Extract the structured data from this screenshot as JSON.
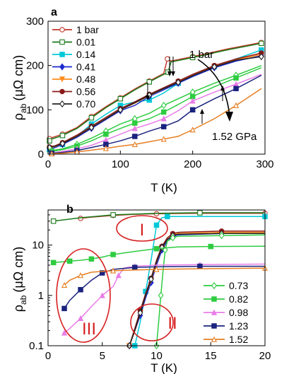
{
  "figure": {
    "panels": [
      "a",
      "b"
    ],
    "shared_xlabel": "T (K)",
    "ylabel_main": "ρ",
    "ylabel_sub": "ab",
    "ylabel_unit": "(μΩ cm)"
  },
  "chart_data": [
    {
      "panel": "a",
      "type": "line",
      "xlabel": "T (K)",
      "ylabel": "ρab (μΩ cm)",
      "xlim": [
        0,
        300
      ],
      "ylim": [
        0,
        300
      ],
      "xticks": [
        0,
        100,
        200,
        300
      ],
      "yticks": [
        0,
        100,
        200,
        300
      ],
      "legend_position": "top-left",
      "annotations": {
        "top_label": "1 bar",
        "bottom_label": "1.52 GPa"
      },
      "series": [
        {
          "name": "1 bar",
          "color": "#c0392b",
          "marker": "circle-open",
          "x": [
            2,
            5,
            20,
            40,
            60,
            80,
            100,
            120,
            140,
            160,
            165,
            170,
            200,
            250,
            295
          ],
          "y": [
            35,
            37,
            45,
            60,
            85,
            107,
            127,
            147,
            165,
            182,
            215,
            210,
            220,
            238,
            252
          ]
        },
        {
          "name": "0.01",
          "color": "#1a7a1a",
          "marker": "square-open",
          "x": [
            2,
            5,
            20,
            40,
            60,
            80,
            100,
            120,
            140,
            160,
            166,
            170,
            200,
            250,
            295
          ],
          "y": [
            30,
            34,
            42,
            58,
            82,
            105,
            125,
            145,
            163,
            180,
            185,
            208,
            218,
            236,
            250
          ]
        },
        {
          "name": "0.14",
          "color": "#00c8d8",
          "marker": "square",
          "x": [
            2,
            10,
            20,
            40,
            60,
            80,
            100,
            120,
            140,
            160,
            180,
            200,
            230,
            260,
            295
          ],
          "y": [
            10,
            15,
            22,
            40,
            68,
            90,
            110,
            118,
            122,
            138,
            160,
            180,
            198,
            215,
            235
          ]
        },
        {
          "name": "0.41",
          "color": "#1a2ad0",
          "marker": "diamond",
          "x": [
            2,
            10,
            20,
            40,
            60,
            80,
            100,
            120,
            140,
            160,
            180,
            200,
            230,
            260,
            295
          ],
          "y": [
            12,
            15,
            22,
            38,
            58,
            78,
            98,
            110,
            130,
            145,
            160,
            175,
            195,
            210,
            222
          ]
        },
        {
          "name": "0.48",
          "color": "#ff8c1a",
          "marker": "triangle-down",
          "x": [
            2,
            10,
            20,
            40,
            60,
            80,
            100,
            120,
            140,
            160,
            180,
            200,
            230,
            260,
            295
          ],
          "y": [
            14,
            17,
            24,
            40,
            60,
            80,
            100,
            115,
            132,
            148,
            163,
            178,
            198,
            213,
            225
          ]
        },
        {
          "name": "0.56",
          "color": "#8b1a1a",
          "marker": "circle-half",
          "x": [
            2,
            10,
            20,
            40,
            60,
            80,
            100,
            120,
            140,
            160,
            180,
            200,
            230,
            260,
            295
          ],
          "y": [
            16,
            19,
            26,
            43,
            63,
            83,
            103,
            118,
            135,
            150,
            165,
            180,
            200,
            215,
            228
          ]
        },
        {
          "name": "0.70",
          "color": "#222222",
          "marker": "diamond-open",
          "x": [
            2,
            10,
            20,
            40,
            60,
            80,
            100,
            120,
            140,
            160,
            180,
            200,
            230,
            260,
            295
          ],
          "y": [
            15,
            18,
            24,
            40,
            60,
            80,
            100,
            116,
            133,
            148,
            162,
            177,
            197,
            212,
            220
          ]
        },
        {
          "name": "0.73",
          "color": "#2ecc40",
          "marker": "diamond-open",
          "x": [
            5,
            20,
            40,
            60,
            80,
            100,
            120,
            140,
            160,
            180,
            200,
            230,
            260,
            295
          ],
          "y": [
            8,
            12,
            22,
            36,
            52,
            68,
            80,
            92,
            110,
            125,
            140,
            160,
            178,
            200
          ]
        },
        {
          "name": "0.82",
          "color": "#2ecc40",
          "marker": "square",
          "x": [
            5,
            20,
            40,
            60,
            80,
            100,
            120,
            140,
            160,
            180,
            200,
            230,
            260,
            295
          ],
          "y": [
            6,
            10,
            18,
            30,
            45,
            58,
            70,
            80,
            95,
            112,
            130,
            152,
            172,
            195
          ]
        },
        {
          "name": "0.98",
          "color": "#e87de8",
          "marker": "triangle",
          "x": [
            5,
            20,
            40,
            60,
            80,
            100,
            120,
            140,
            160,
            180,
            200,
            230,
            260,
            295
          ],
          "y": [
            3,
            6,
            12,
            20,
            32,
            45,
            58,
            68,
            80,
            98,
            120,
            140,
            158,
            180
          ]
        },
        {
          "name": "1.23",
          "color": "#1a237e",
          "marker": "square",
          "x": [
            5,
            20,
            40,
            60,
            80,
            100,
            120,
            140,
            160,
            180,
            200,
            230,
            260,
            295
          ],
          "y": [
            2,
            4,
            8,
            15,
            22,
            30,
            40,
            52,
            62,
            75,
            100,
            125,
            148,
            178
          ]
        },
        {
          "name": "1.52",
          "color": "#e67e22",
          "marker": "triangle-open",
          "x": [
            5,
            20,
            40,
            60,
            80,
            100,
            120,
            140,
            160,
            180,
            200,
            230,
            260,
            295
          ],
          "y": [
            1,
            2,
            5,
            9,
            13,
            18,
            22,
            28,
            34,
            40,
            55,
            80,
            110,
            148
          ]
        }
      ]
    },
    {
      "panel": "b",
      "type": "line",
      "xlabel": "T (K)",
      "ylabel": "ρab (μΩ cm)",
      "xlim": [
        0,
        20
      ],
      "ylim": [
        0.1,
        50
      ],
      "yscale": "log",
      "xticks": [
        0,
        5,
        10,
        15,
        20
      ],
      "yticks": [
        0.1,
        1,
        10
      ],
      "legend_position": "bottom-right",
      "legend_entries": [
        "0.73",
        "0.82",
        "0.98",
        "1.23",
        "1.52"
      ],
      "region_labels": [
        "I",
        "II",
        "III"
      ],
      "series": [
        {
          "name": "1 bar",
          "color": "#c0392b",
          "x": [
            3,
            4,
            6,
            8,
            10,
            14,
            20
          ],
          "y": [
            34,
            36,
            39,
            41,
            42,
            43,
            43
          ]
        },
        {
          "name": "0.01",
          "color": "#1a7a1a",
          "x": [
            0.5,
            3,
            6,
            10,
            14,
            20
          ],
          "y": [
            30,
            35,
            40,
            43,
            44,
            44
          ]
        },
        {
          "name": "0.14",
          "color": "#00c8d8",
          "x": [
            8,
            8.5,
            9,
            9.5,
            10,
            10.5,
            11,
            14,
            20
          ],
          "y": [
            0.1,
            0.3,
            1.2,
            5,
            25,
            35,
            37,
            37,
            37
          ]
        },
        {
          "name": "0.41",
          "color": "#1a2ad0",
          "x": [
            7.5,
            8,
            8.5,
            9,
            9.5,
            10,
            10.5,
            11,
            11.5,
            12,
            16,
            20
          ],
          "y": [
            0.1,
            0.2,
            0.4,
            0.9,
            1.8,
            4,
            8,
            12,
            15,
            16,
            17,
            17
          ]
        },
        {
          "name": "0.48",
          "color": "#ff8c1a",
          "x": [
            7.5,
            8,
            8.5,
            9,
            9.5,
            10,
            10.5,
            11,
            11.5,
            12,
            16,
            20
          ],
          "y": [
            0.1,
            0.2,
            0.45,
            1,
            2,
            4.5,
            9,
            13,
            16,
            17,
            18,
            18
          ]
        },
        {
          "name": "0.56",
          "color": "#8b1a1a",
          "x": [
            7.5,
            8,
            8.5,
            9,
            9.5,
            10,
            10.5,
            11,
            11.5,
            12,
            16,
            20
          ],
          "y": [
            0.1,
            0.22,
            0.5,
            1.1,
            2.2,
            5,
            9.5,
            14,
            17,
            18,
            19,
            19
          ]
        },
        {
          "name": "0.70",
          "color": "#222222",
          "x": [
            7.5,
            8,
            8.5,
            9,
            9.5,
            10,
            10.5,
            11,
            11.5,
            12,
            16,
            20
          ],
          "y": [
            0.1,
            0.2,
            0.45,
            1,
            2.1,
            4.6,
            9,
            13,
            15.5,
            16.5,
            17,
            17
          ]
        },
        {
          "name": "0.73",
          "color": "#2ecc40",
          "x": [
            10,
            10.2,
            10.4,
            10.6,
            10.8,
            11,
            11.5,
            12,
            16,
            20
          ],
          "y": [
            0.1,
            0.3,
            1,
            3,
            8,
            12,
            14,
            15,
            15.5,
            16
          ]
        },
        {
          "name": "0.82",
          "color": "#2ecc40",
          "x": [
            0.5,
            1,
            2,
            3,
            4,
            5,
            6,
            8,
            10,
            12,
            15,
            20
          ],
          "y": [
            4.5,
            4.6,
            4.8,
            5,
            5.3,
            5.8,
            6.5,
            7.5,
            8.5,
            9.2,
            9.4,
            9.5
          ]
        },
        {
          "name": "0.98",
          "color": "#e87de8",
          "x": [
            1.5,
            2,
            3,
            4,
            5,
            6,
            6.5,
            7,
            8,
            10,
            14,
            20
          ],
          "y": [
            0.18,
            0.22,
            0.35,
            0.6,
            1,
            1.5,
            2.5,
            3.5,
            3.8,
            4,
            4.1,
            4.2
          ]
        },
        {
          "name": "1.23",
          "color": "#1a237e",
          "x": [
            1.5,
            2,
            3,
            4,
            5,
            6,
            8,
            10,
            14,
            20
          ],
          "y": [
            0.55,
            0.8,
            1.3,
            2,
            2.8,
            3.3,
            3.6,
            3.7,
            3.8,
            3.8
          ]
        },
        {
          "name": "1.52",
          "color": "#e67e22",
          "x": [
            1.5,
            2,
            3,
            4,
            6,
            8,
            10,
            14,
            20
          ],
          "y": [
            1.6,
            2,
            2.5,
            2.9,
            3.1,
            3.2,
            3.3,
            3.4,
            3.5
          ]
        }
      ]
    }
  ]
}
